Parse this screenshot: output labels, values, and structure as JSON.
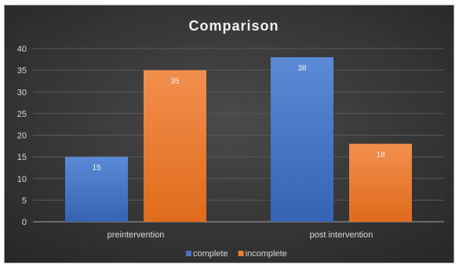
{
  "chart_data": {
    "type": "bar",
    "title": "Comparison",
    "categories": [
      "preintervention",
      "post intervention"
    ],
    "series": [
      {
        "name": "complete",
        "values": [
          15,
          38
        ],
        "color": "#4472c4"
      },
      {
        "name": "incomplete",
        "values": [
          35,
          18
        ],
        "color": "#ed7d31"
      }
    ],
    "xlabel": "",
    "ylabel": "",
    "ylim": [
      0,
      40
    ],
    "yticks": [
      0,
      5,
      10,
      15,
      20,
      25,
      30,
      35,
      40
    ],
    "grid": true,
    "legend_position": "bottom",
    "background": "#3a3a3a"
  }
}
